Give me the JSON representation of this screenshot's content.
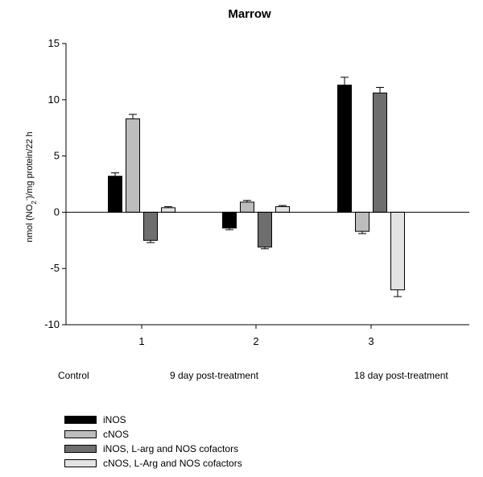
{
  "chart_data": {
    "type": "bar",
    "title": "Marrow",
    "ylabel_pre": "nmol (NO",
    "ylabel_sub": "2",
    "ylabel_sup": "-",
    "ylabel_post": ")/mg protein/22 h",
    "categories": [
      "1",
      "2",
      "3"
    ],
    "ylim": [
      -10,
      15
    ],
    "yticks": [
      -10,
      -5,
      0,
      5,
      10,
      15
    ],
    "group_captions": [
      "Control",
      "9 day post-treatment",
      "18 day post-treatment"
    ],
    "legend_position": "bottom-left",
    "series": [
      {
        "name": "iNOS",
        "color": "#000000",
        "values": [
          3.2,
          -1.4,
          11.3
        ],
        "errors": [
          0.3,
          0.15,
          0.7
        ]
      },
      {
        "name": "cNOS",
        "color": "#bdbdbd",
        "values": [
          8.3,
          0.9,
          -1.7
        ],
        "errors": [
          0.4,
          0.15,
          0.2
        ]
      },
      {
        "name": "iNOS, L-arg and NOS cofactors",
        "color": "#6e6e6e",
        "values": [
          -2.5,
          -3.1,
          10.6
        ],
        "errors": [
          0.2,
          0.15,
          0.5
        ]
      },
      {
        "name": "cNOS, L-Arg and NOS cofactors",
        "color": "#e3e3e3",
        "values": [
          0.4,
          0.5,
          -6.9
        ],
        "errors": [
          0.1,
          0.1,
          0.6
        ]
      }
    ]
  }
}
